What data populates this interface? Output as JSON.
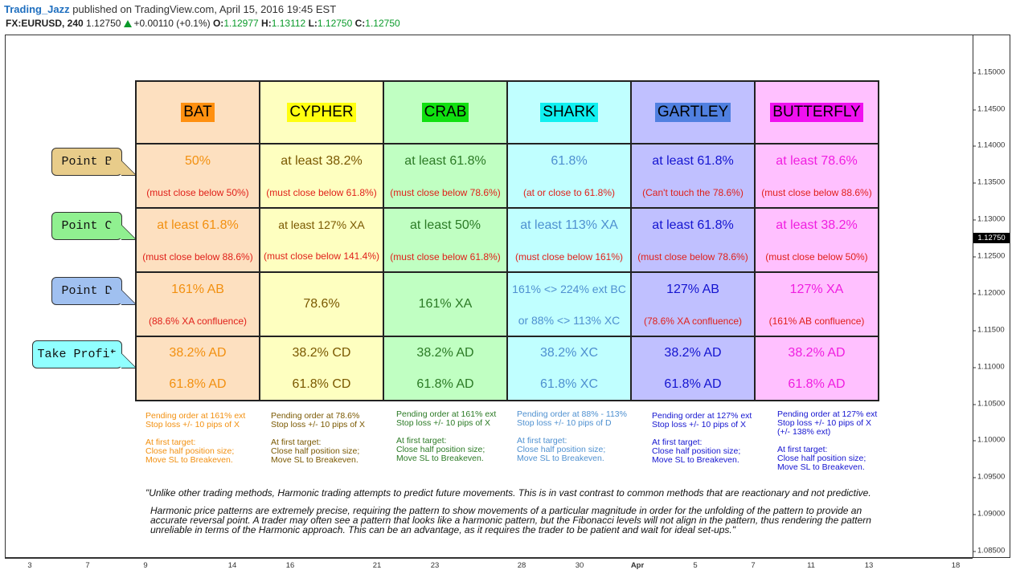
{
  "header": {
    "author": "Trading_Jazz",
    "published": "published on TradingView.com, April 15, 2016 19:45 EST",
    "symbol": "FX:EURUSD, 240",
    "price": "1.12750",
    "change": "+0.00110 (+0.1%)",
    "o_label": "O:",
    "o": "1.12977",
    "h_label": "H:",
    "h": "1.13112",
    "l_label": "L:",
    "l": "1.12750",
    "c_label": "C:",
    "c": "1.12750"
  },
  "y_axis": {
    "ticks": [
      "1.15000",
      "1.14500",
      "1.14000",
      "1.13500",
      "1.13000",
      "1.12500",
      "1.12000",
      "1.11500",
      "1.11000",
      "1.10500",
      "1.10000",
      "1.09500",
      "1.09000",
      "1.08500"
    ],
    "current": "1.12750"
  },
  "x_axis": {
    "ticks": [
      "3",
      "7",
      "9",
      "14",
      "16",
      "21",
      "23",
      "28",
      "30",
      "Apr",
      "5",
      "7",
      "11",
      "13",
      "18"
    ]
  },
  "callouts": {
    "b": "Point B",
    "c": "Point C",
    "d": "Point D",
    "tp": "Take Profit"
  },
  "patterns": [
    {
      "name": "BAT",
      "name_bg": "#ff9010",
      "b": "50%",
      "b_note": "(must close below 50%)",
      "c": "at least 61.8%",
      "c_note": "(must close below 88.6%)",
      "d": "161% AB",
      "d_note": "(88.6% XA confluence)",
      "tp1": "38.2% AD",
      "tp2": "61.8% AD",
      "pending": "Pending order at 161% ext",
      "stop": "Stop loss +/- 10 pips of X",
      "first": "At first target:",
      "half": "Close half position size;",
      "move": "Move SL to Breakeven."
    },
    {
      "name": "CYPHER",
      "name_bg": "#ffff10",
      "b": "at least 38.2%",
      "b_note": "(must close below 61.8%)",
      "c": "at least 127% XA",
      "c_note": "(must close below 141.4%)",
      "d": "78.6%",
      "d_note": "",
      "tp1": "38.2% CD",
      "tp2": "61.8% CD",
      "pending": "Pending order at 78.6%",
      "stop": "Stop loss +/- 10 pips of X",
      "first": "At first target:",
      "half": "Close half position size;",
      "move": "Move SL to Breakeven."
    },
    {
      "name": "CRAB",
      "name_bg": "#10e010",
      "b": "at least 61.8%",
      "b_note": "(must close below 78.6%)",
      "c": "at least 50%",
      "c_note": "(must close below 61.8%)",
      "d": "161% XA",
      "d_note": "",
      "tp1": "38.2% AD",
      "tp2": "61.8% AD",
      "pending": "Pending order at 161% ext",
      "stop": "Stop loss +/- 10 pips of X",
      "first": "At first target:",
      "half": "Close half position size;",
      "move": "Move SL to Breakeven."
    },
    {
      "name": "SHARK",
      "name_bg": "#10f0f0",
      "b": "61.8%",
      "b_note": "(at or close to 61.8%)",
      "c": "at least 113% XA",
      "c_note": "(must close below 161%)",
      "d": "161% <> 224% ext BC",
      "d_note": "or 88% <> 113% XC",
      "tp1": "38.2% XC",
      "tp2": "61.8% XC",
      "pending": "Pending order at 88% - 113%",
      "stop": "Stop loss +/- 10 pips of D",
      "first": "At first target:",
      "half": "Close half position size;",
      "move": "Move SL to Breakeven."
    },
    {
      "name": "GARTLEY",
      "name_bg": "#5080e0",
      "b": "at least 61.8%",
      "b_note": "(Can't touch the 78.6%)",
      "c": "at least 61.8%",
      "c_note": "(must close below 78.6%)",
      "d": "127% AB",
      "d_note": "(78.6% XA confluence)",
      "tp1": "38.2% AD",
      "tp2": "61.8% AD",
      "pending": "Pending order at 127% ext",
      "stop": "Stop loss +/- 10 pips of X",
      "first": "At first target:",
      "half": "Close half position size;",
      "move": "Move SL to Breakeven."
    },
    {
      "name": "BUTTERFLY",
      "name_bg": "#f010f0",
      "b": "at least 78.6%",
      "b_note": "(must close below 88.6%)",
      "c": "at least 38.2%",
      "c_note": "(must close below 50%)",
      "d": "127% XA",
      "d_note": "(161% AB confluence)",
      "tp1": "38.2% AD",
      "tp2": "61.8% AD",
      "pending": "Pending order at 127% ext",
      "stop": "Stop loss +/- 10 pips of X (+/- 138% ext)",
      "first": "At first target:",
      "half": "Close half position size;",
      "move": "Move SL to Breakeven."
    }
  ],
  "quote": "\"Unlike other trading methods, Harmonic trading attempts to predict future movements. This is in vast contrast to common methods that are reactionary and not predictive.",
  "paragraph": "Harmonic price patterns are extremely precise, requiring the pattern to show movements of a particular magnitude in order for the unfolding of the pattern to provide an accurate reversal point. A trader may often see a pattern that looks like a harmonic pattern, but the Fibonacci levels will not align in the pattern, thus rendering the pattern unreliable in terms of the Harmonic approach. This can be an advantage, as it requires the trader to be patient and wait for ideal set-ups.\""
}
